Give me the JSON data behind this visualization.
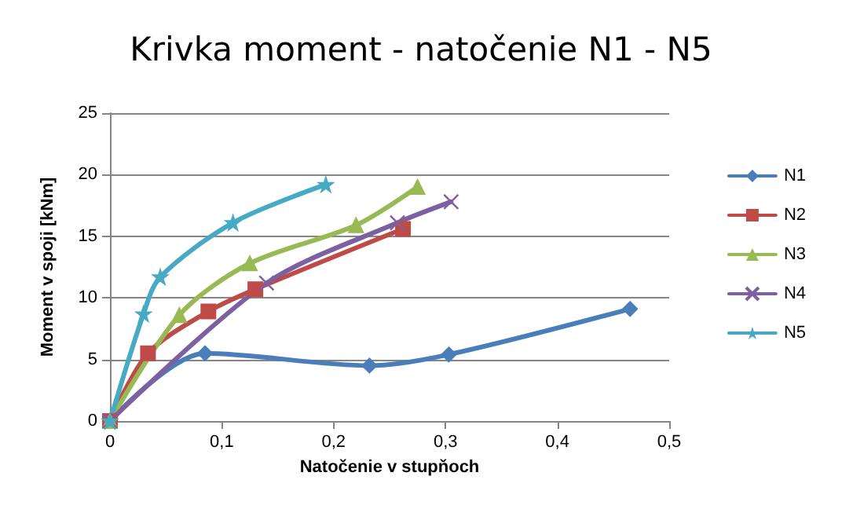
{
  "chart_data": {
    "type": "line",
    "title": "Krivka moment - natočenie N1 - N5",
    "xlabel": "Natočenie v stupňoch",
    "ylabel": "Moment v spoji [kNm]",
    "xlim": [
      0,
      0.5
    ],
    "xticks": [
      {
        "value": 0,
        "label": "0"
      },
      {
        "value": 0.1,
        "label": "0,1"
      },
      {
        "value": 0.2,
        "label": "0,2"
      },
      {
        "value": 0.3,
        "label": "0,3"
      },
      {
        "value": 0.4,
        "label": "0,4"
      },
      {
        "value": 0.5,
        "label": "0,5"
      }
    ],
    "ylim": [
      0,
      25
    ],
    "yticks": [
      0,
      5,
      10,
      15,
      20,
      25
    ],
    "grid": "y",
    "legend": "right",
    "line_style": "solid",
    "series": [
      {
        "name": "N1",
        "color": "#4a7ebb",
        "marker": "diamond",
        "x": [
          0,
          0.085,
          0.232,
          0.303,
          0.465
        ],
        "values": [
          0,
          5.5,
          4.5,
          5.4,
          9.1
        ]
      },
      {
        "name": "N2",
        "color": "#be4b48",
        "marker": "square",
        "x": [
          0,
          0.034,
          0.088,
          0.13,
          0.262
        ],
        "values": [
          0,
          5.5,
          8.9,
          10.7,
          15.6
        ]
      },
      {
        "name": "N3",
        "color": "#98b954",
        "marker": "triangle",
        "x": [
          0,
          0.062,
          0.125,
          0.22,
          0.275
        ],
        "values": [
          0,
          8.6,
          12.8,
          15.9,
          19
        ]
      },
      {
        "name": "N4",
        "color": "#7d60a0",
        "marker": "cross",
        "x": [
          0,
          0.14,
          0.257,
          0.305
        ],
        "values": [
          0,
          11.2,
          16.1,
          17.8
        ]
      },
      {
        "name": "N5",
        "color": "#46aac5",
        "marker": "star",
        "x": [
          0,
          0.03,
          0.045,
          0.11,
          0.193
        ],
        "values": [
          0,
          8.7,
          11.7,
          16.1,
          19.2
        ]
      }
    ]
  }
}
